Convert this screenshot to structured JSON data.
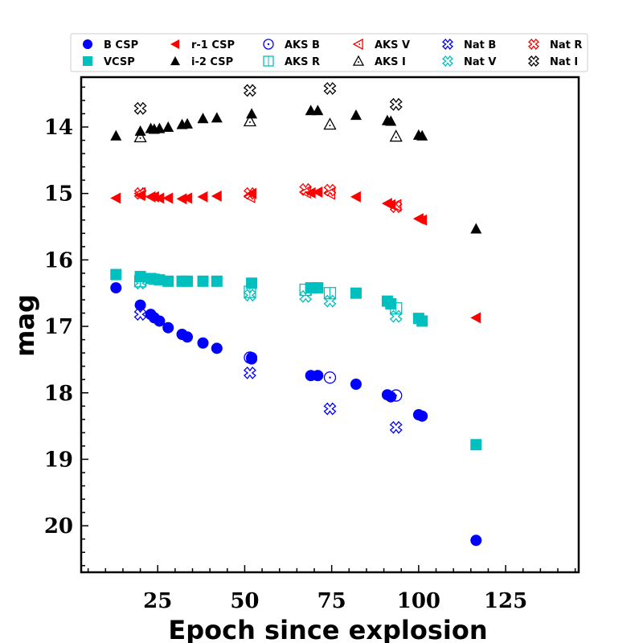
{
  "chart_data": {
    "type": "scatter",
    "xlabel": "Epoch since explosion",
    "ylabel": "mag",
    "xlim": [
      3,
      146
    ],
    "ylim": [
      20.7,
      13.25
    ],
    "y_inverted": true,
    "grid": false,
    "legend_placement": "top, above plot, 6 columns",
    "x_ticks": [
      25,
      50,
      75,
      100,
      125
    ],
    "y_ticks": [
      14,
      15,
      16,
      17,
      18,
      19,
      20
    ],
    "series": [
      {
        "name": "B CSP",
        "marker": "circle-filled",
        "color": "#0000ff",
        "x": [
          13,
          20,
          23,
          24,
          25.5,
          28,
          32,
          33.5,
          38,
          42,
          52,
          52,
          69,
          71,
          82,
          91,
          92,
          100,
          101,
          116.5
        ],
        "y": [
          16.42,
          16.68,
          16.82,
          16.87,
          16.92,
          17.02,
          17.12,
          17.16,
          17.25,
          17.33,
          17.47,
          17.49,
          17.74,
          17.74,
          17.87,
          18.03,
          18.06,
          18.33,
          18.35,
          20.22
        ]
      },
      {
        "name": "VCSP",
        "marker": "square-filled",
        "color": "#00bfbf",
        "x": [
          13,
          20,
          23,
          24,
          25.5,
          28,
          32,
          33.5,
          38,
          42,
          52,
          69,
          71,
          82,
          91,
          92,
          100,
          101,
          116.5
        ],
        "y": [
          16.22,
          16.25,
          16.28,
          16.29,
          16.3,
          16.32,
          16.32,
          16.32,
          16.32,
          16.32,
          16.35,
          16.42,
          16.42,
          16.5,
          16.62,
          16.66,
          16.88,
          16.92,
          18.78
        ]
      },
      {
        "name": "r-1 CSP",
        "marker": "triangle-left-filled",
        "color": "#ff0000",
        "x": [
          13,
          20,
          23,
          24,
          25.5,
          28,
          32,
          33.5,
          38,
          42,
          52,
          69,
          71,
          82,
          91,
          92,
          100,
          101,
          116.5
        ],
        "y": [
          15.07,
          15.03,
          15.05,
          15.05,
          15.07,
          15.07,
          15.08,
          15.07,
          15.05,
          15.04,
          15.0,
          14.99,
          14.98,
          15.05,
          15.15,
          15.17,
          15.38,
          15.4,
          16.87
        ]
      },
      {
        "name": "i-2 CSP",
        "marker": "triangle-up-filled",
        "color": "#000000",
        "x": [
          13,
          20,
          23,
          24,
          25.5,
          28,
          32,
          33.5,
          38,
          42,
          52,
          69,
          71,
          82,
          91,
          92,
          100,
          101,
          116.5
        ],
        "y": [
          14.13,
          14.06,
          14.02,
          14.03,
          14.02,
          14.0,
          13.96,
          13.95,
          13.87,
          13.86,
          13.8,
          13.75,
          13.75,
          13.82,
          13.9,
          13.91,
          14.12,
          14.13,
          15.53
        ]
      },
      {
        "name": "AKS B",
        "marker": "circle-open-vline",
        "color": "#0000ff",
        "x": [
          51.5,
          74.5,
          93.5
        ],
        "y": [
          17.47,
          17.77,
          18.04
        ]
      },
      {
        "name": "AKS R",
        "marker": "square-open-vline",
        "color": "#00bfbf",
        "x": [
          20,
          51.5,
          67.5,
          74.5,
          93.5
        ],
        "y": [
          16.32,
          16.48,
          16.45,
          16.5,
          16.73
        ]
      },
      {
        "name": "AKS V",
        "marker": "triangle-left-open",
        "color": "#ff0000",
        "x": [
          20,
          51.5,
          67.5,
          74.5,
          93.5
        ],
        "y": [
          15.0,
          15.05,
          14.98,
          15.0,
          15.18
        ]
      },
      {
        "name": "AKS I",
        "marker": "triangle-up-open",
        "color": "#000000",
        "x": [
          20,
          51.5,
          74.5,
          93.5
        ],
        "y": [
          14.15,
          13.91,
          13.96,
          14.14
        ]
      },
      {
        "name": "Nat B",
        "marker": "x-open",
        "color": "#0000ff",
        "x": [
          20,
          51.5,
          74.5,
          93.5
        ],
        "y": [
          16.82,
          17.7,
          18.24,
          18.52
        ]
      },
      {
        "name": "Nat V",
        "marker": "x-open",
        "color": "#00bfbf",
        "x": [
          20,
          51.5,
          67.5,
          74.5,
          93.5
        ],
        "y": [
          16.35,
          16.53,
          16.55,
          16.62,
          16.85
        ]
      },
      {
        "name": "Nat R",
        "marker": "x-open",
        "color": "#ff0000",
        "x": [
          20,
          51.5,
          67.5,
          74.5,
          93.5
        ],
        "y": [
          15.0,
          15.0,
          14.94,
          14.95,
          15.2
        ]
      },
      {
        "name": "Nat I",
        "marker": "x-open",
        "color": "#000000",
        "x": [
          20,
          51.5,
          74.5,
          93.5
        ],
        "y": [
          13.72,
          13.45,
          13.42,
          13.66
        ]
      }
    ]
  }
}
